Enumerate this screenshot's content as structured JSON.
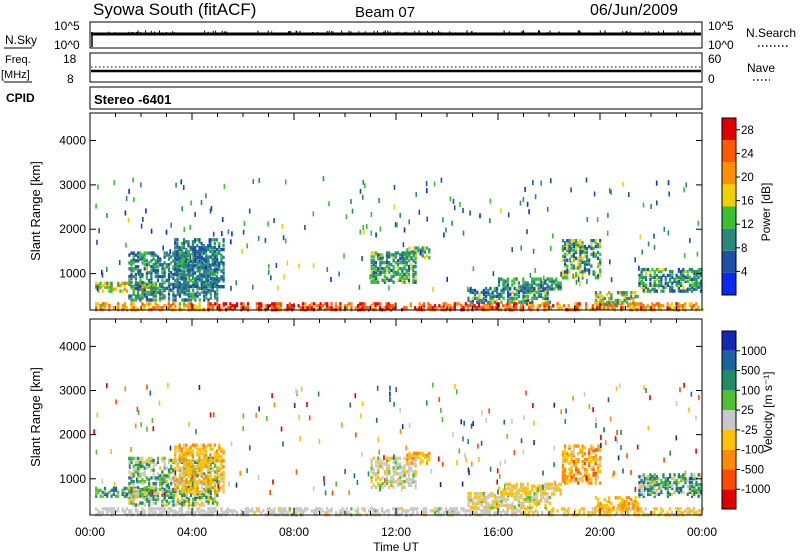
{
  "header": {
    "station": "Syowa South (fitACF)",
    "beam": "Beam 07",
    "date": "06/Jun/2009"
  },
  "top_panels": {
    "nsky_label": "N.Sky",
    "nsky_ticks": [
      "10^5",
      "10^0"
    ],
    "nsearch_label": "N.Search",
    "nsearch_ticks": [
      "10^5",
      "10^0"
    ],
    "freq_label": "Freq.",
    "freq_unit": "[MHz]",
    "freq_ticks": [
      "18",
      "8"
    ],
    "nave_label": "Nave",
    "nave_ticks": [
      "60",
      "0"
    ],
    "cpid_label": "CPID",
    "cpid_value": "Stereo -6401"
  },
  "colors": {
    "power_scale": [
      "#0b28f0",
      "#1f4fa8",
      "#2a8a7a",
      "#38c030",
      "#f0d000",
      "#ff9000",
      "#ff5a00",
      "#e00000"
    ],
    "velocity_scale": [
      "#e00000",
      "#ff4a00",
      "#ff8c00",
      "#ffc000",
      "#c8c8c8",
      "#50c030",
      "#1e8c64",
      "#1e64a0",
      "#1428b4"
    ]
  },
  "chart_data": [
    {
      "type": "heatmap",
      "name": "power",
      "ylabel": "Slant Range [km]",
      "xlabel": "Time UT",
      "x_ticks": [
        "00:00",
        "04:00",
        "08:00",
        "12:00",
        "16:00",
        "20:00",
        "00:00"
      ],
      "y_ticks": [
        "1000",
        "2000",
        "3000",
        "4000"
      ],
      "ylim": [
        180,
        4620
      ],
      "xlim_hours": [
        0,
        24
      ],
      "colorbar": {
        "label": "Power [dB]",
        "ticks": [
          "4",
          "8",
          "12",
          "16",
          "20",
          "24",
          "28"
        ],
        "range": [
          0,
          30
        ]
      },
      "regions": [
        {
          "t0": 0.2,
          "t1": 4.8,
          "r0": 180,
          "r1": 320,
          "v": [
            14,
            26
          ]
        },
        {
          "t0": 4.6,
          "t1": 17.0,
          "r0": 180,
          "r1": 320,
          "v": [
            20,
            30
          ]
        },
        {
          "t0": 17.0,
          "t1": 24.0,
          "r0": 180,
          "r1": 320,
          "v": [
            16,
            28
          ]
        },
        {
          "t0": 0.2,
          "t1": 2.6,
          "r0": 600,
          "r1": 800,
          "v": [
            10,
            24
          ]
        },
        {
          "t0": 1.5,
          "t1": 5.0,
          "r0": 400,
          "r1": 1500,
          "v": [
            4,
            14
          ]
        },
        {
          "t0": 3.3,
          "t1": 5.2,
          "r0": 700,
          "r1": 1800,
          "v": [
            4,
            12
          ]
        },
        {
          "t0": 11.0,
          "t1": 12.8,
          "r0": 800,
          "r1": 1500,
          "v": [
            6,
            16
          ]
        },
        {
          "t0": 12.4,
          "t1": 13.3,
          "r0": 1350,
          "r1": 1600,
          "v": [
            8,
            18
          ]
        },
        {
          "t0": 14.8,
          "t1": 18.0,
          "r0": 350,
          "r1": 700,
          "v": [
            4,
            16
          ]
        },
        {
          "t0": 16.0,
          "t1": 18.5,
          "r0": 650,
          "r1": 900,
          "v": [
            6,
            14
          ]
        },
        {
          "t0": 18.5,
          "t1": 20.0,
          "r0": 900,
          "r1": 1750,
          "v": [
            4,
            20
          ]
        },
        {
          "t0": 19.8,
          "t1": 21.5,
          "r0": 300,
          "r1": 600,
          "v": [
            8,
            22
          ]
        },
        {
          "t0": 21.5,
          "t1": 24.0,
          "r0": 600,
          "r1": 1100,
          "v": [
            4,
            16
          ]
        }
      ]
    },
    {
      "type": "heatmap",
      "name": "velocity",
      "ylabel": "Slant Range [km]",
      "xlabel": "Time UT",
      "x_ticks": [
        "00:00",
        "04:00",
        "08:00",
        "12:00",
        "16:00",
        "20:00",
        "00:00"
      ],
      "y_ticks": [
        "1000",
        "2000",
        "3000",
        "4000"
      ],
      "ylim": [
        180,
        4620
      ],
      "xlim_hours": [
        0,
        24
      ],
      "colorbar": {
        "label": "Velocity [m s⁻¹]",
        "ticks": [
          "1000",
          "500",
          "100",
          "25",
          "-25",
          "-100",
          "-500",
          "-1000"
        ],
        "range": [
          -1200,
          1200
        ]
      },
      "regions": [
        {
          "t0": 0.2,
          "t1": 4.8,
          "r0": 180,
          "r1": 320,
          "v": [
            -80,
            80
          ]
        },
        {
          "t0": 4.6,
          "t1": 17.0,
          "r0": 180,
          "r1": 320,
          "v": [
            -150,
            150
          ]
        },
        {
          "t0": 17.0,
          "t1": 24.0,
          "r0": 180,
          "r1": 320,
          "v": [
            -400,
            -50
          ]
        },
        {
          "t0": 0.2,
          "t1": 2.6,
          "r0": 600,
          "r1": 800,
          "v": [
            100,
            900
          ]
        },
        {
          "t0": 1.5,
          "t1": 5.0,
          "r0": 400,
          "r1": 1500,
          "v": [
            -300,
            700
          ]
        },
        {
          "t0": 3.3,
          "t1": 5.2,
          "r0": 700,
          "r1": 1800,
          "v": [
            -500,
            -80
          ]
        },
        {
          "t0": 11.0,
          "t1": 12.8,
          "r0": 800,
          "r1": 1500,
          "v": [
            -200,
            200
          ]
        },
        {
          "t0": 12.4,
          "t1": 13.3,
          "r0": 1350,
          "r1": 1600,
          "v": [
            -500,
            -100
          ]
        },
        {
          "t0": 14.8,
          "t1": 18.0,
          "r0": 350,
          "r1": 700,
          "v": [
            -400,
            200
          ]
        },
        {
          "t0": 16.0,
          "t1": 18.5,
          "r0": 650,
          "r1": 900,
          "v": [
            -400,
            -60
          ]
        },
        {
          "t0": 18.5,
          "t1": 20.0,
          "r0": 900,
          "r1": 1750,
          "v": [
            -700,
            -100
          ]
        },
        {
          "t0": 19.8,
          "t1": 21.5,
          "r0": 300,
          "r1": 600,
          "v": [
            -600,
            -100
          ]
        },
        {
          "t0": 21.5,
          "t1": 24.0,
          "r0": 600,
          "r1": 1100,
          "v": [
            -200,
            900
          ]
        }
      ]
    }
  ]
}
